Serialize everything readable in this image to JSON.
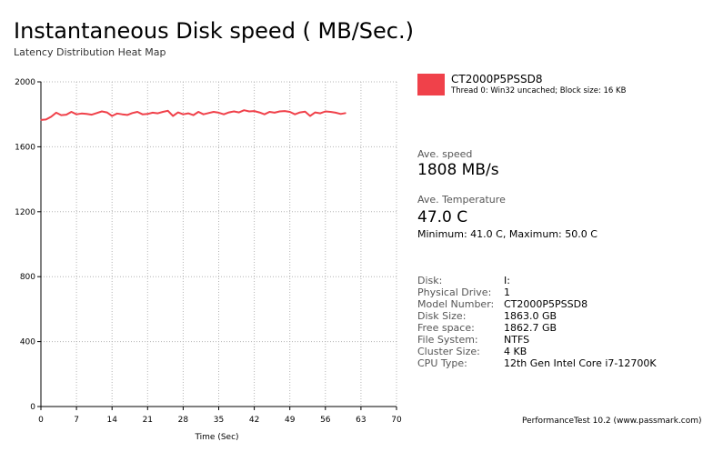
{
  "header": {
    "title": "Instantaneous Disk speed ( MB/Sec.)",
    "subtitle": "Latency Distribution Heat Map"
  },
  "legend": {
    "name": "CT2000P5PSSD8",
    "description": "Thread 0: Win32 uncached; Block size: 16 KB"
  },
  "stats": {
    "speed_label": "Ave. speed",
    "speed_value": "1808 MB/s",
    "temp_label": "Ave. Temperature",
    "temp_value": "47.0 C",
    "minmax": "Minimum: 41.0 C, Maximum: 50.0 C"
  },
  "info": [
    {
      "label": "Disk:",
      "value": "I:"
    },
    {
      "label": "Physical Drive:",
      "value": "1"
    },
    {
      "label": "Model Number:",
      "value": "CT2000P5PSSD8"
    },
    {
      "label": "Disk Size:",
      "value": "1863.0 GB"
    },
    {
      "label": "Free space:",
      "value": "1862.7 GB"
    },
    {
      "label": "File System:",
      "value": "NTFS"
    },
    {
      "label": "Cluster Size:",
      "value": "4 KB"
    },
    {
      "label": "CPU Type:",
      "value": "12th Gen Intel Core i7-12700K"
    }
  ],
  "footer": "PerformanceTest 10.2 (www.passmark.com)",
  "colors": {
    "series": "#f0414a",
    "grid": "#b4b4b4",
    "axis": "#000000"
  },
  "chart_data": {
    "type": "line",
    "title": "Instantaneous Disk speed ( MB/Sec.)",
    "subtitle": "Latency Distribution Heat Map",
    "xlabel": "Time (Sec)",
    "ylabel": "",
    "xlim": [
      0,
      70
    ],
    "ylim": [
      0,
      2000
    ],
    "xticks": [
      0,
      7,
      14,
      21,
      28,
      35,
      42,
      49,
      56,
      63,
      70
    ],
    "yticks": [
      0,
      400,
      800,
      1200,
      1600,
      2000
    ],
    "grid": true,
    "legend_position": "right",
    "series": [
      {
        "name": "CT2000P5PSSD8",
        "x": [
          0,
          1,
          2,
          3,
          4,
          5,
          6,
          7,
          8,
          9,
          10,
          11,
          12,
          13,
          14,
          15,
          16,
          17,
          18,
          19,
          20,
          21,
          22,
          23,
          24,
          25,
          26,
          27,
          28,
          29,
          30,
          31,
          32,
          33,
          34,
          35,
          36,
          37,
          38,
          39,
          40,
          41,
          42,
          43,
          44,
          45,
          46,
          47,
          48,
          49,
          50,
          51,
          52,
          53,
          54,
          55,
          56,
          57,
          58,
          59,
          60
        ],
        "y": [
          1765,
          1768,
          1785,
          1810,
          1795,
          1798,
          1815,
          1800,
          1805,
          1802,
          1798,
          1808,
          1818,
          1812,
          1790,
          1805,
          1800,
          1796,
          1808,
          1815,
          1800,
          1802,
          1810,
          1806,
          1815,
          1822,
          1790,
          1812,
          1800,
          1806,
          1795,
          1815,
          1800,
          1808,
          1815,
          1810,
          1800,
          1812,
          1818,
          1812,
          1825,
          1818,
          1820,
          1812,
          1800,
          1815,
          1810,
          1818,
          1820,
          1815,
          1800,
          1812,
          1816,
          1790,
          1812,
          1806,
          1818,
          1815,
          1810,
          1802,
          1808
        ]
      }
    ]
  }
}
